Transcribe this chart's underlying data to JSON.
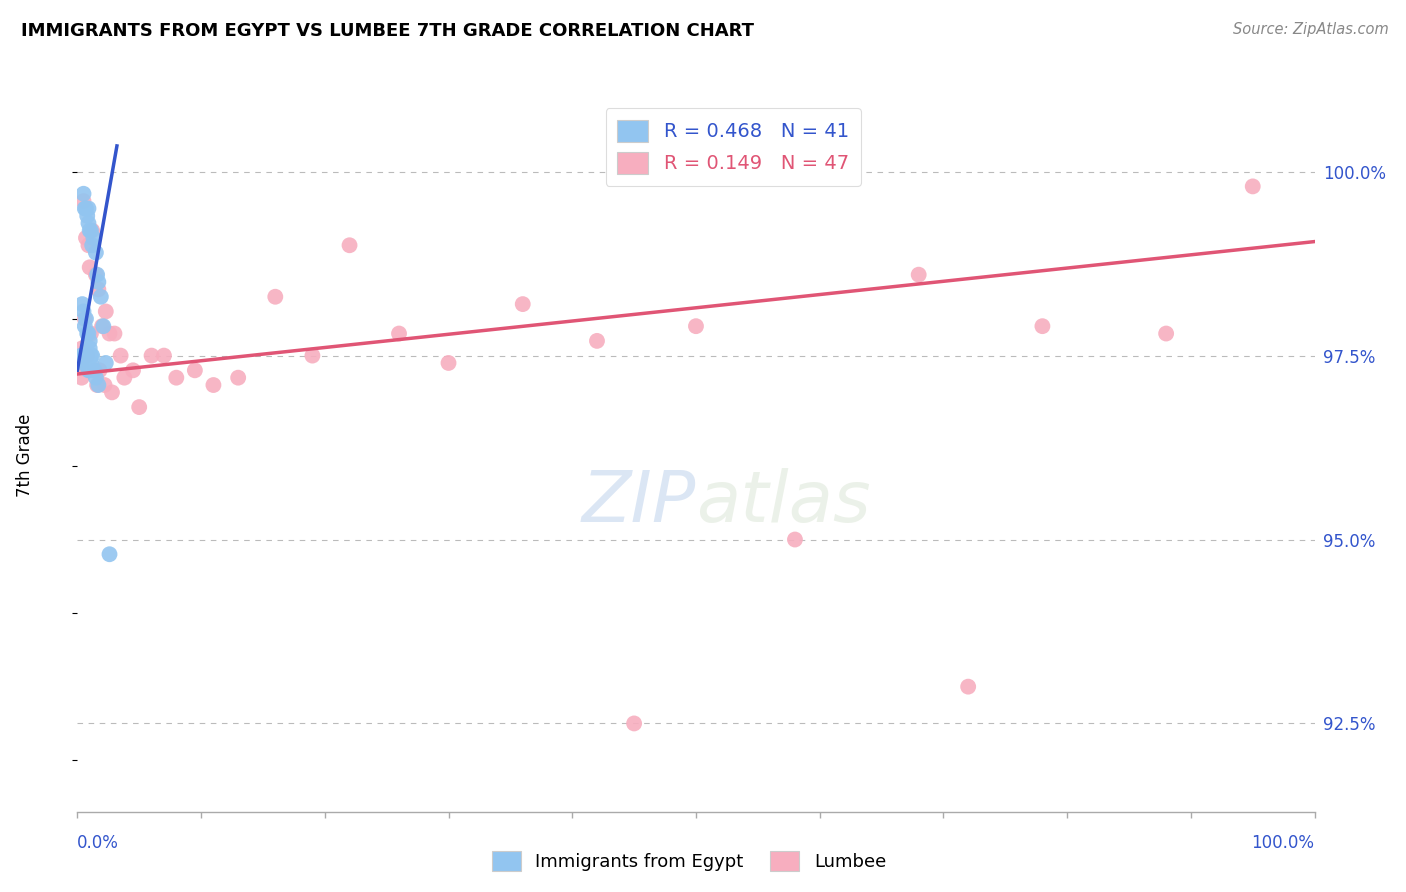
{
  "title": "IMMIGRANTS FROM EGYPT VS LUMBEE 7TH GRADE CORRELATION CHART",
  "source": "Source: ZipAtlas.com",
  "ylabel": "7th Grade",
  "legend_blue_r": "R = 0.468",
  "legend_blue_n": "N = 41",
  "legend_pink_r": "R = 0.149",
  "legend_pink_n": "N = 47",
  "legend_bottom_blue": "Immigrants from Egypt",
  "legend_bottom_pink": "Lumbee",
  "yticks": [
    92.5,
    95.0,
    97.5,
    100.0
  ],
  "ytick_labels": [
    "92.5%",
    "95.0%",
    "97.5%",
    "100.0%"
  ],
  "xmin": 0.0,
  "xmax": 100.0,
  "ymin": 91.3,
  "ymax": 101.0,
  "blue_color": "#92C5F0",
  "pink_color": "#F7AEBF",
  "blue_line_color": "#3355CC",
  "pink_line_color": "#E05575",
  "background_color": "#ffffff",
  "blue_x": [
    0.5,
    0.6,
    0.7,
    0.8,
    0.9,
    0.9,
    1.0,
    1.1,
    1.2,
    1.3,
    1.5,
    1.6,
    1.7,
    1.9,
    2.1,
    0.4,
    0.5,
    0.6,
    0.7,
    0.8,
    0.9,
    1.0,
    1.0,
    1.1,
    1.2,
    0.3,
    0.4,
    0.5,
    0.6,
    0.7,
    0.8,
    0.9,
    1.0,
    1.1,
    1.2,
    1.3,
    1.4,
    1.5,
    1.7,
    2.3,
    2.6
  ],
  "blue_y": [
    99.7,
    99.5,
    99.5,
    99.4,
    99.5,
    99.3,
    99.2,
    99.2,
    99.0,
    99.1,
    98.9,
    98.6,
    98.5,
    98.3,
    97.9,
    98.2,
    98.1,
    97.9,
    98.0,
    97.8,
    97.8,
    97.7,
    97.6,
    97.5,
    97.5,
    97.5,
    97.5,
    97.4,
    97.5,
    97.4,
    97.4,
    97.3,
    97.3,
    97.4,
    97.3,
    97.3,
    97.3,
    97.2,
    97.1,
    97.4,
    94.8
  ],
  "pink_x": [
    0.3,
    0.5,
    0.7,
    0.9,
    1.0,
    1.2,
    1.5,
    1.7,
    2.0,
    2.3,
    2.6,
    3.0,
    3.5,
    4.5,
    6.0,
    8.0,
    11.0,
    16.0,
    22.0,
    30.0,
    42.0,
    58.0,
    78.0,
    95.0,
    0.4,
    0.6,
    0.8,
    1.1,
    1.4,
    1.8,
    2.2,
    2.8,
    3.8,
    5.0,
    7.0,
    9.5,
    13.0,
    19.0,
    26.0,
    36.0,
    50.0,
    68.0,
    88.0,
    0.35,
    1.6,
    45.0,
    72.0
  ],
  "pink_y": [
    97.4,
    99.6,
    99.1,
    99.0,
    98.7,
    99.2,
    98.6,
    98.4,
    97.9,
    98.1,
    97.8,
    97.8,
    97.5,
    97.3,
    97.5,
    97.2,
    97.1,
    98.3,
    99.0,
    97.4,
    97.7,
    95.0,
    97.9,
    99.8,
    97.6,
    98.0,
    97.5,
    97.8,
    97.3,
    97.3,
    97.1,
    97.0,
    97.2,
    96.8,
    97.5,
    97.3,
    97.2,
    97.5,
    97.8,
    98.2,
    97.9,
    98.6,
    97.8,
    97.2,
    97.1,
    92.5,
    93.0
  ],
  "blue_trendline_x": [
    0.0,
    3.2
  ],
  "blue_trendline_y": [
    97.3,
    100.35
  ],
  "pink_trendline_x": [
    0.0,
    100.0
  ],
  "pink_trendline_y": [
    97.25,
    99.05
  ]
}
